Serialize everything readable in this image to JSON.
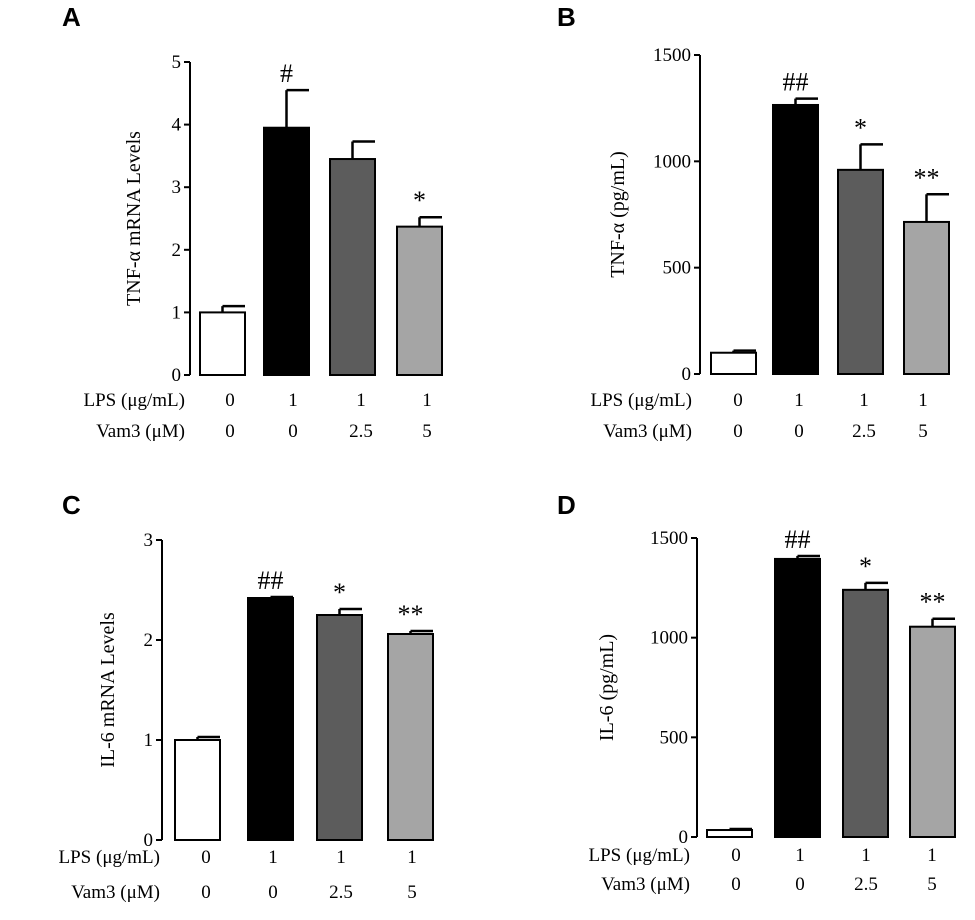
{
  "colors": {
    "ctrl": "#ffffff",
    "lps": "#000000",
    "vam_low": "#5c5c5c",
    "vam_high": "#a5a5a5",
    "outline": "#000000"
  },
  "chart_data": [
    {
      "panel": "A",
      "type": "bar",
      "ylabel": "TNF-α mRNA Levels",
      "ylim": [
        0,
        5
      ],
      "yticks": [
        "0",
        "1",
        "2",
        "3",
        "4",
        "5"
      ],
      "condition_rows": [
        {
          "label": "LPS (μg/mL)",
          "values": [
            "0",
            "1",
            "1",
            "1"
          ]
        },
        {
          "label": "Vam3 (μM)",
          "values": [
            "0",
            "0",
            "2.5",
            "5"
          ]
        }
      ],
      "values": [
        1.0,
        3.95,
        3.45,
        2.37
      ],
      "errors": [
        0.1,
        0.6,
        0.28,
        0.15
      ],
      "significance": [
        "",
        "#",
        "",
        "*"
      ]
    },
    {
      "panel": "B",
      "type": "bar",
      "ylabel": "TNF-α (pg/mL)",
      "ylim": [
        0,
        1500
      ],
      "yticks": [
        "0",
        "500",
        "1000",
        "1500"
      ],
      "condition_rows": [
        {
          "label": "LPS (μg/mL)",
          "values": [
            "0",
            "1",
            "1",
            "1"
          ]
        },
        {
          "label": "Vam3 (μM)",
          "values": [
            "0",
            "0",
            "2.5",
            "5"
          ]
        }
      ],
      "values": [
        100,
        1265,
        960,
        715
      ],
      "errors": [
        10,
        30,
        120,
        130
      ],
      "significance": [
        "",
        "##",
        "*",
        "**"
      ]
    },
    {
      "panel": "C",
      "type": "bar",
      "ylabel": "IL-6 mRNA Levels",
      "ylim": [
        0,
        3
      ],
      "yticks": [
        "0",
        "1",
        "2",
        "3"
      ],
      "condition_rows": [
        {
          "label": "LPS (μg/mL)",
          "values": [
            "0",
            "1",
            "1",
            "1"
          ]
        },
        {
          "label": "Vam3 (μM)",
          "values": [
            "0",
            "0",
            "2.5",
            "5"
          ]
        }
      ],
      "values": [
        1.0,
        2.42,
        2.25,
        2.06
      ],
      "errors": [
        0.03,
        0.01,
        0.06,
        0.03
      ],
      "significance": [
        "",
        "##",
        "*",
        "**"
      ]
    },
    {
      "panel": "D",
      "type": "bar",
      "ylabel": "IL-6 (pg/mL)",
      "ylim": [
        0,
        1500
      ],
      "yticks": [
        "0",
        "500",
        "1000",
        "1500"
      ],
      "condition_rows": [
        {
          "label": "LPS (μg/mL)",
          "values": [
            "0",
            "1",
            "1",
            "1"
          ]
        },
        {
          "label": "Vam3 (μM)",
          "values": [
            "0",
            "0",
            "2.5",
            "5"
          ]
        }
      ],
      "values": [
        35,
        1395,
        1240,
        1055
      ],
      "errors": [
        5,
        15,
        35,
        40
      ],
      "significance": [
        "",
        "##",
        "*",
        "**"
      ]
    }
  ]
}
